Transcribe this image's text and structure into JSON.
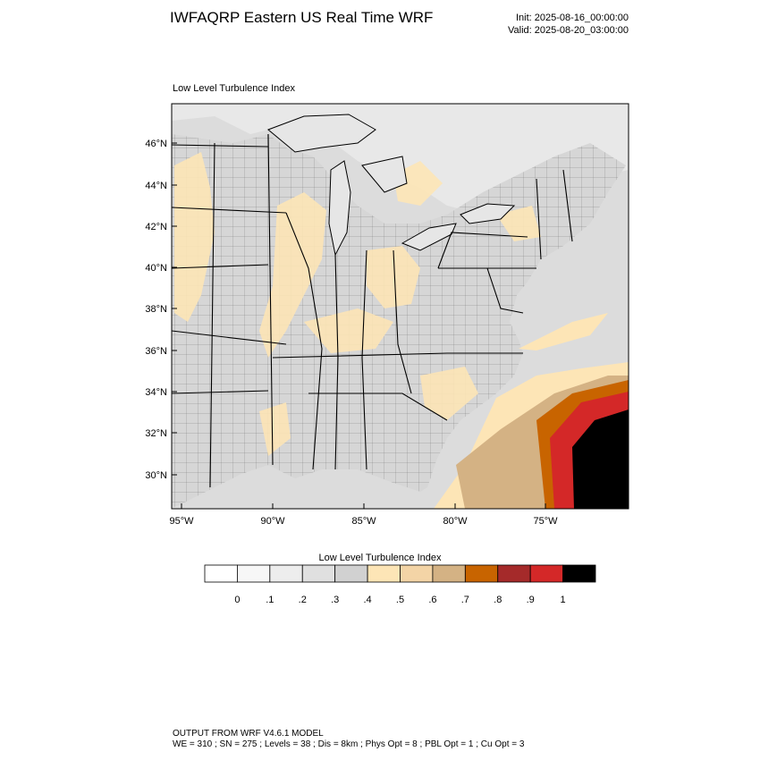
{
  "header": {
    "title": "IWFAQRP Eastern US Real Time WRF",
    "init": "Init: 2025-08-16_00:00:00",
    "valid": "Valid: 2025-08-20_03:00:00"
  },
  "map": {
    "subtitle": "Low Level Turbulence Index",
    "lat_labels": [
      "46°N",
      "44°N",
      "42°N",
      "40°N",
      "38°N",
      "36°N",
      "34°N",
      "32°N",
      "30°N"
    ],
    "lon_labels": [
      "95°W",
      "90°W",
      "85°W",
      "80°W",
      "75°W"
    ],
    "colors": {
      "land": "#d6d6d6",
      "water": "#e6e6e6",
      "tan_light": "#fde5b6",
      "tan_mid": "#d4b284",
      "orange": "#c86400",
      "red": "#d42828",
      "black": "#000000"
    }
  },
  "colorbar": {
    "title": "Low Level Turbulence Index",
    "tick_labels": [
      "0",
      ".1",
      ".2",
      ".3",
      ".4",
      ".5",
      ".6",
      ".7",
      ".8",
      ".9",
      "1"
    ],
    "colors": [
      "#ffffff",
      "#f7f7f7",
      "#ededed",
      "#e0e0e0",
      "#d1d1d1",
      "#fde5b6",
      "#f3d4a6",
      "#d4b284",
      "#c86400",
      "#a52a2a",
      "#d42828",
      "#000000"
    ]
  },
  "footer": {
    "line1": "OUTPUT FROM WRF V4.6.1 MODEL",
    "line2": "WE = 310 ; SN = 275 ; Levels = 38 ; Dis = 8km ; Phys Opt = 8 ; PBL Opt = 1 ; Cu Opt = 3"
  }
}
